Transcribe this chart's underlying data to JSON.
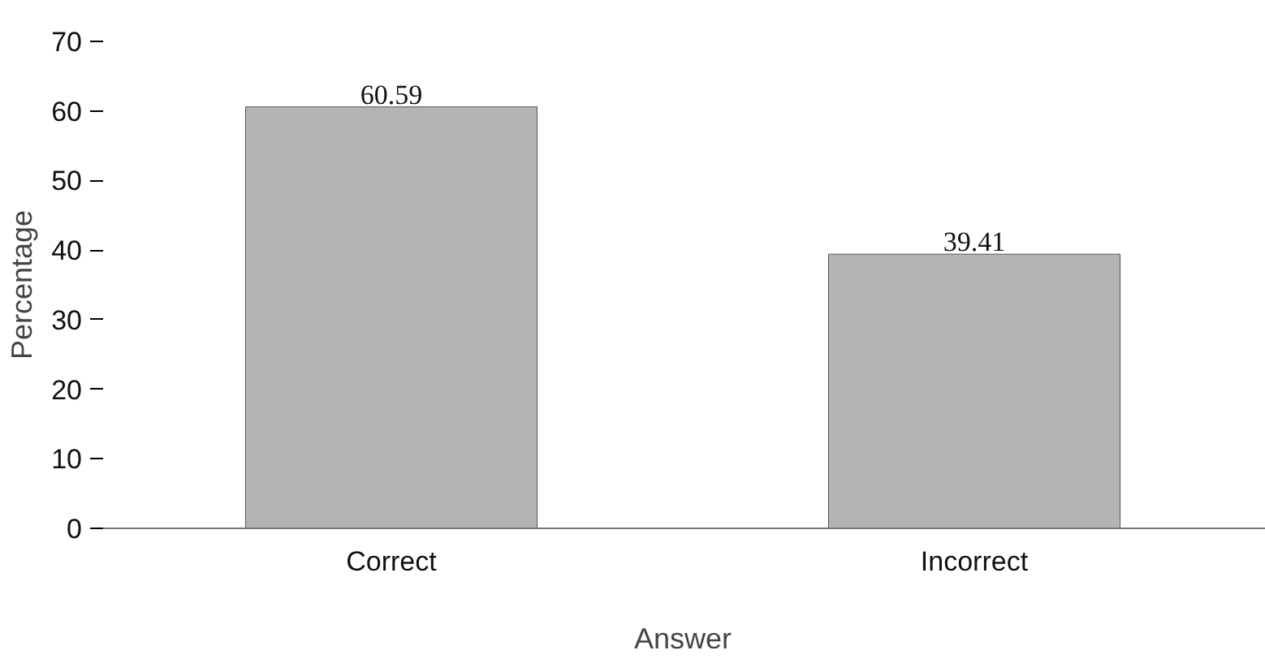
{
  "chart_data": {
    "type": "bar",
    "xlabel": "Answer",
    "ylabel": "Percentage",
    "categories": [
      "Correct",
      "Incorrect"
    ],
    "values": [
      60.59,
      39.41
    ],
    "color": "#b4b4b4",
    "ylim": [
      0,
      70
    ],
    "yticks": [
      0,
      10,
      20,
      30,
      40,
      50,
      60,
      70
    ],
    "grid": false,
    "data_labels": true
  }
}
